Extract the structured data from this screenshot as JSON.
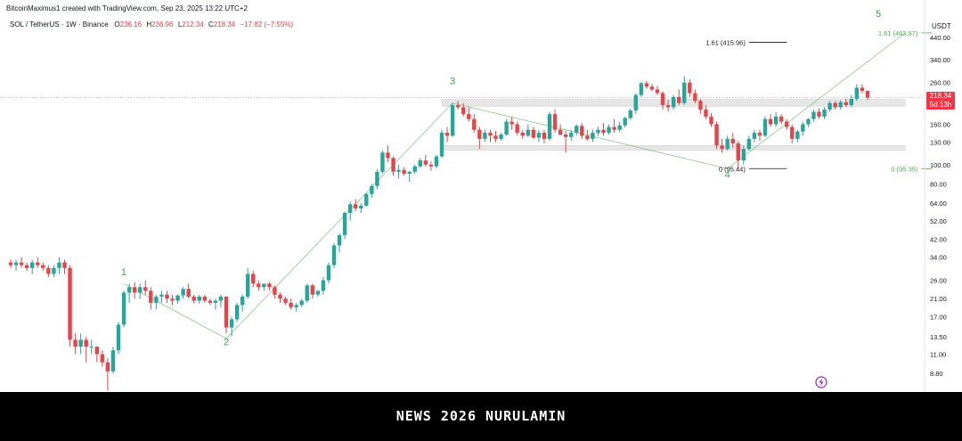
{
  "attribution": "BitcoinMaximus1 created with TradingView.com, Sep 23, 2025 13:22 UTC+2",
  "legend": {
    "symbol": "SOL / TetherUS · 1W · Binance",
    "open_label": "O",
    "open": "236.16",
    "high_label": "H",
    "high": "236.96",
    "low_label": "L",
    "low": "212.34",
    "close_label": "C",
    "close": "218.34",
    "change": "−17.82 (−7.55%)"
  },
  "currency": "USDT",
  "last_price": {
    "price": "218.34",
    "countdown": "5d 13h"
  },
  "banner": {
    "text": "NEWS 2026 NURULAMIN"
  },
  "colors": {
    "up": "#26a69a",
    "down": "#e2464b",
    "wave": "#3aa655",
    "fib_ext": "#4caf50",
    "zone": "#e6e6e6",
    "last_price": "#f23645"
  },
  "chart_data": {
    "type": "candlestick",
    "interval": "1W",
    "scale": "log",
    "ylim": [
      7.0,
      560.0
    ],
    "y_ticks": [
      440.0,
      340.0,
      260.0,
      210.0,
      160.0,
      130.0,
      100.0,
      80.0,
      64.0,
      52.0,
      42.0,
      34.0,
      26.0,
      21.0,
      17.0,
      13.5,
      11.0,
      8.8
    ],
    "y_tick_labels": [
      "440.00",
      "340.00",
      "260.00",
      "210.00",
      "160.00",
      "130.00",
      "100.00",
      "80.00",
      "64.00",
      "52.00",
      "42.00",
      "34.00",
      "26.00",
      "21.00",
      "17.00",
      "13.50",
      "11.00",
      "8.80"
    ],
    "candles": [
      [
        32,
        33,
        30,
        31
      ],
      [
        31,
        33,
        29,
        32
      ],
      [
        32,
        34,
        30,
        31
      ],
      [
        31,
        32,
        29,
        30
      ],
      [
        30,
        33,
        28,
        32
      ],
      [
        32,
        34,
        30,
        31
      ],
      [
        31,
        32,
        29,
        30
      ],
      [
        30,
        31,
        27,
        28
      ],
      [
        28,
        31,
        27,
        30
      ],
      [
        30,
        34,
        28,
        32
      ],
      [
        32,
        33,
        28,
        30
      ],
      [
        30,
        31,
        12,
        13
      ],
      [
        13,
        14,
        11,
        12
      ],
      [
        12,
        14,
        11,
        13
      ],
      [
        13,
        13.5,
        10,
        12
      ],
      [
        12,
        13,
        11,
        12
      ],
      [
        12,
        12,
        10,
        11
      ],
      [
        11,
        11.5,
        9.5,
        10
      ],
      [
        10,
        10.5,
        7.2,
        9
      ],
      [
        9,
        12,
        8.8,
        11.5
      ],
      [
        11.5,
        16,
        11,
        15.5
      ],
      [
        15.5,
        23,
        15,
        22.5
      ],
      [
        22.5,
        25,
        20,
        24
      ],
      [
        24,
        25.5,
        21,
        22.5
      ],
      [
        22.5,
        25,
        21,
        24
      ],
      [
        24,
        26,
        22,
        23
      ],
      [
        23,
        24,
        18.5,
        20
      ],
      [
        20,
        22,
        18.5,
        21.5
      ],
      [
        21.5,
        23,
        20,
        22
      ],
      [
        22,
        23,
        20,
        21
      ],
      [
        21,
        22,
        19.5,
        20.5
      ],
      [
        20.5,
        22,
        19.8,
        21.8
      ],
      [
        21.8,
        24,
        21,
        23.5
      ],
      [
        23.5,
        25,
        21,
        21.5
      ],
      [
        21.5,
        22,
        19.8,
        20.5
      ],
      [
        20.5,
        22,
        19.8,
        21.5
      ],
      [
        21.5,
        22,
        20,
        20.5
      ],
      [
        20.5,
        21,
        19.5,
        20
      ],
      [
        20,
        21,
        18.5,
        20.5
      ],
      [
        20.5,
        22,
        19,
        21.5
      ],
      [
        21.5,
        21.5,
        14,
        15
      ],
      [
        15,
        17,
        13.5,
        16.5
      ],
      [
        16.5,
        20,
        16,
        19.5
      ],
      [
        19.5,
        22,
        18,
        21.5
      ],
      [
        21.5,
        30,
        21,
        28
      ],
      [
        28,
        29,
        24,
        25
      ],
      [
        25,
        26,
        23,
        24
      ],
      [
        24,
        25,
        23,
        25
      ],
      [
        25,
        25.5,
        23,
        24
      ],
      [
        24,
        24.5,
        21,
        22
      ],
      [
        22,
        22.5,
        20,
        21
      ],
      [
        21,
        21.5,
        19.5,
        20
      ],
      [
        20,
        21,
        18.5,
        19
      ],
      [
        19,
        20,
        18,
        19.5
      ],
      [
        19.5,
        21,
        19,
        20.5
      ],
      [
        20.5,
        25,
        20,
        24.5
      ],
      [
        24.5,
        25,
        21,
        22
      ],
      [
        22,
        23,
        21.5,
        23
      ],
      [
        23,
        27,
        22,
        26
      ],
      [
        26,
        32,
        25,
        31
      ],
      [
        31,
        40,
        30,
        39
      ],
      [
        39,
        45,
        36,
        44
      ],
      [
        44,
        58,
        42,
        57
      ],
      [
        57,
        65,
        52,
        63
      ],
      [
        63,
        67,
        58,
        60
      ],
      [
        60,
        64,
        57,
        62
      ],
      [
        62,
        72,
        61,
        71
      ],
      [
        71,
        80,
        68,
        78
      ],
      [
        78,
        95,
        75,
        92
      ],
      [
        92,
        118,
        90,
        115
      ],
      [
        115,
        125,
        103,
        108
      ],
      [
        108,
        110,
        88,
        92
      ],
      [
        92,
        100,
        85,
        94
      ],
      [
        94,
        97,
        88,
        90
      ],
      [
        90,
        93,
        82,
        92
      ],
      [
        92,
        100,
        90,
        98
      ],
      [
        98,
        108,
        96,
        105
      ],
      [
        105,
        112,
        98,
        100
      ],
      [
        100,
        104,
        93,
        98
      ],
      [
        98,
        112,
        96,
        110
      ],
      [
        110,
        150,
        108,
        145
      ],
      [
        145,
        155,
        130,
        140
      ],
      [
        140,
        205,
        138,
        200
      ],
      [
        200,
        210,
        190,
        195
      ],
      [
        195,
        205,
        175,
        180
      ],
      [
        180,
        195,
        165,
        170
      ],
      [
        170,
        180,
        145,
        150
      ],
      [
        150,
        155,
        120,
        135
      ],
      [
        135,
        150,
        130,
        145
      ],
      [
        145,
        150,
        130,
        140
      ],
      [
        140,
        148,
        130,
        135
      ],
      [
        135,
        145,
        132,
        142
      ],
      [
        142,
        170,
        140,
        165
      ],
      [
        165,
        175,
        150,
        160
      ],
      [
        160,
        165,
        140,
        145
      ],
      [
        145,
        150,
        135,
        140
      ],
      [
        140,
        160,
        138,
        150
      ],
      [
        150,
        155,
        135,
        137
      ],
      [
        137,
        150,
        130,
        145
      ],
      [
        145,
        150,
        128,
        135
      ],
      [
        135,
        185,
        132,
        180
      ],
      [
        180,
        190,
        145,
        150
      ],
      [
        150,
        160,
        140,
        142
      ],
      [
        142,
        148,
        115,
        138
      ],
      [
        138,
        150,
        132,
        145
      ],
      [
        145,
        160,
        140,
        157
      ],
      [
        157,
        162,
        135,
        140
      ],
      [
        140,
        150,
        132,
        135
      ],
      [
        135,
        150,
        130,
        145
      ],
      [
        145,
        155,
        140,
        150
      ],
      [
        150,
        162,
        140,
        145
      ],
      [
        145,
        160,
        142,
        155
      ],
      [
        155,
        170,
        145,
        150
      ],
      [
        150,
        165,
        147,
        158
      ],
      [
        158,
        175,
        154,
        172
      ],
      [
        172,
        192,
        168,
        188
      ],
      [
        188,
        230,
        180,
        225
      ],
      [
        225,
        262,
        220,
        258
      ],
      [
        258,
        265,
        242,
        248
      ],
      [
        248,
        255,
        235,
        240
      ],
      [
        240,
        250,
        225,
        230
      ],
      [
        230,
        235,
        190,
        200
      ],
      [
        200,
        212,
        185,
        195
      ],
      [
        195,
        225,
        190,
        220
      ],
      [
        220,
        240,
        200,
        205
      ],
      [
        205,
        280,
        200,
        260
      ],
      [
        260,
        270,
        220,
        230
      ],
      [
        230,
        240,
        205,
        210
      ],
      [
        210,
        215,
        180,
        190
      ],
      [
        190,
        200,
        170,
        175
      ],
      [
        175,
        182,
        155,
        160
      ],
      [
        160,
        165,
        120,
        125
      ],
      [
        125,
        135,
        115,
        120
      ],
      [
        120,
        140,
        118,
        135
      ],
      [
        135,
        145,
        122,
        128
      ],
      [
        128,
        132,
        95,
        105
      ],
      [
        105,
        125,
        100,
        120
      ],
      [
        120,
        140,
        118,
        135
      ],
      [
        135,
        150,
        130,
        145
      ],
      [
        145,
        150,
        132,
        140
      ],
      [
        140,
        175,
        138,
        170
      ],
      [
        170,
        180,
        155,
        160
      ],
      [
        160,
        185,
        155,
        175
      ],
      [
        175,
        180,
        160,
        165
      ],
      [
        165,
        170,
        150,
        155
      ],
      [
        155,
        160,
        128,
        135
      ],
      [
        135,
        150,
        130,
        147
      ],
      [
        147,
        165,
        140,
        160
      ],
      [
        160,
        172,
        155,
        170
      ],
      [
        170,
        190,
        165,
        185
      ],
      [
        185,
        192,
        170,
        175
      ],
      [
        175,
        195,
        170,
        190
      ],
      [
        190,
        210,
        185,
        205
      ],
      [
        205,
        210,
        190,
        195
      ],
      [
        195,
        212,
        190,
        207
      ],
      [
        207,
        215,
        195,
        200
      ],
      [
        200,
        225,
        195,
        215
      ],
      [
        215,
        255,
        210,
        245
      ],
      [
        245,
        255,
        230,
        236
      ],
      [
        236.16,
        236.96,
        212.34,
        218.34
      ]
    ],
    "wave_labels": [
      {
        "label": "1",
        "x": 21,
        "y": 27.5
      },
      {
        "label": "2",
        "x": 40,
        "y": 12.2
      },
      {
        "label": "3",
        "x": 82,
        "y": 255
      },
      {
        "label": "4",
        "x": 133,
        "y": 86
      },
      {
        "label": "5",
        "x": 161,
        "y": 560
      }
    ],
    "wave_path": [
      {
        "x": 21,
        "y": 25
      },
      {
        "x": 40,
        "y": 13.2
      },
      {
        "x": 82,
        "y": 205
      },
      {
        "x": 133,
        "y": 95.4
      },
      {
        "x": 166,
        "y": 463.87
      }
    ],
    "zones": [
      {
        "x_from": 80,
        "x_to": 166,
        "y_low": 197,
        "y_high": 214
      },
      {
        "x_from": 80,
        "x_to": 166,
        "y_low": 118,
        "y_high": 125
      }
    ],
    "fib_levels": [
      {
        "label": "1.61 (415.96)",
        "price": 415.96,
        "x_from": 137,
        "x_to": 144
      },
      {
        "label": "0 (95.44)",
        "price": 95.44,
        "x_from": 137,
        "x_to": 144
      },
      {
        "label": "1.61 (463.87)",
        "price": 463.87,
        "x_from": 169,
        "x_to": 171
      },
      {
        "label": "0 (95.35)",
        "price": 95.35,
        "x_from": 169,
        "x_to": 171
      }
    ],
    "last_price_line": 218.34
  }
}
